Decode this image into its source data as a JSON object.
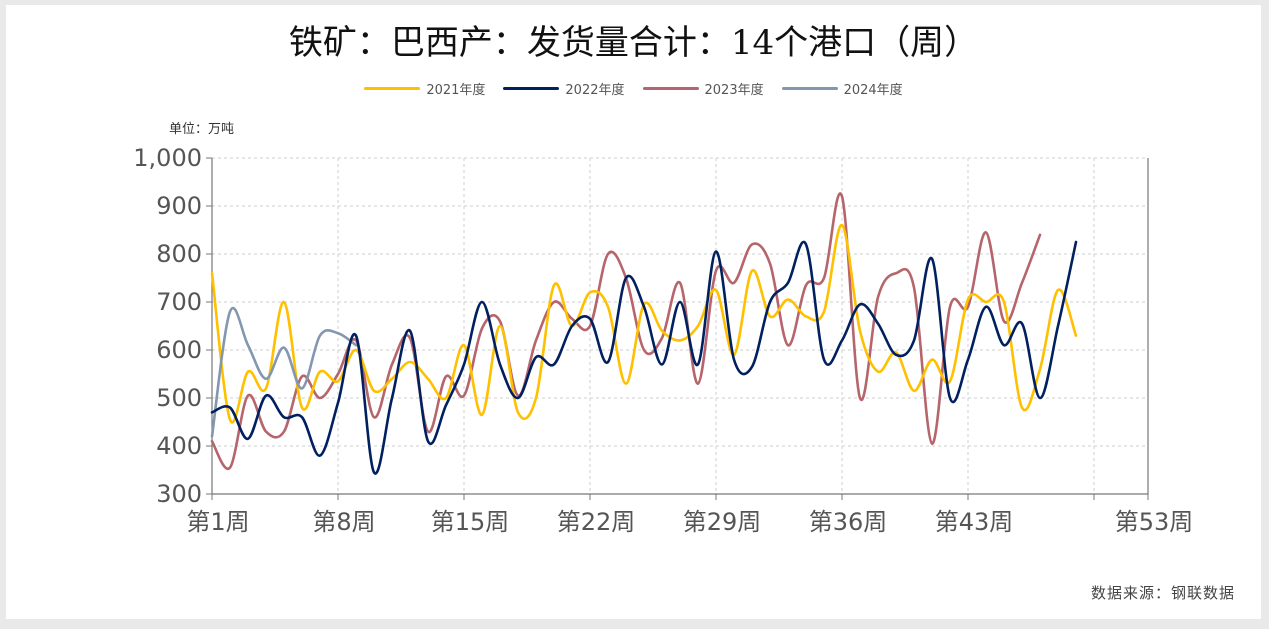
{
  "title": "铁矿：巴西产：发货量合计：14个港口（周）",
  "unit_label": "单位：万吨",
  "source_label": "数据来源：钢联数据",
  "chart_data": {
    "type": "line",
    "ylim": [
      300,
      1000
    ],
    "y_ticks": [
      300,
      400,
      500,
      600,
      700,
      800,
      900,
      1000
    ],
    "y_tick_labels": [
      "300",
      "400",
      "500",
      "600",
      "700",
      "800",
      "900",
      "1,000"
    ],
    "x_ticks": [
      1,
      8,
      15,
      22,
      29,
      36,
      43,
      53
    ],
    "x_tick_labels": [
      "第1周",
      "第8周",
      "第15周",
      "第22周",
      "第29周",
      "第36周",
      "第43周",
      "第53周"
    ],
    "grid": true,
    "legend_position": "top-center",
    "series": [
      {
        "name": "2021年度",
        "color": "#FFC000",
        "values": [
          760,
          455,
          555,
          520,
          700,
          480,
          555,
          535,
          600,
          515,
          540,
          575,
          540,
          500,
          610,
          465,
          650,
          470,
          500,
          735,
          650,
          720,
          690,
          530,
          695,
          640,
          620,
          650,
          725,
          590,
          765,
          670,
          705,
          670,
          680,
          860,
          640,
          555,
          595,
          515,
          580,
          535,
          705,
          700,
          700,
          480,
          560,
          725,
          630
        ]
      },
      {
        "name": "2022年度",
        "color": "#002060",
        "values": [
          470,
          480,
          415,
          505,
          460,
          460,
          380,
          490,
          630,
          345,
          500,
          640,
          410,
          485,
          570,
          700,
          570,
          500,
          585,
          570,
          650,
          665,
          575,
          750,
          690,
          570,
          700,
          570,
          805,
          580,
          565,
          700,
          740,
          820,
          580,
          620,
          695,
          655,
          590,
          620,
          790,
          500,
          580,
          690,
          610,
          655,
          500,
          650,
          825
        ]
      },
      {
        "name": "2023年度",
        "color": "#B5656B",
        "values": [
          410,
          355,
          505,
          430,
          430,
          545,
          500,
          550,
          620,
          460,
          570,
          625,
          430,
          545,
          505,
          645,
          660,
          505,
          620,
          700,
          665,
          650,
          800,
          750,
          600,
          625,
          740,
          530,
          765,
          740,
          820,
          780,
          610,
          735,
          750,
          920,
          500,
          710,
          760,
          730,
          405,
          690,
          690,
          845,
          660,
          740,
          840
        ]
      },
      {
        "name": "2024年度",
        "color": "#8497B0",
        "values": [
          420,
          680,
          610,
          540,
          605,
          520,
          630,
          635,
          610
        ]
      }
    ]
  }
}
